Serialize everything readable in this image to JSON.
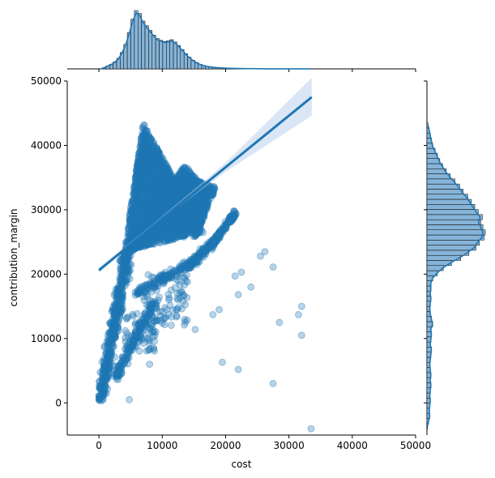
{
  "chart_data": {
    "type": "scatter",
    "kind": "jointplot-regression",
    "title": "",
    "xlabel": "cost",
    "ylabel": "contribution_margin",
    "xlim": [
      -5000,
      50000
    ],
    "ylim": [
      -5000,
      50000
    ],
    "xticks": [
      0,
      10000,
      20000,
      30000,
      40000,
      50000
    ],
    "yticks": [
      0,
      10000,
      20000,
      30000,
      40000,
      50000
    ],
    "grid": false,
    "colors": {
      "points": "#1f77b4",
      "regression_line": "#1f77b4",
      "confidence_band": "#aec7e8",
      "histogram_fill": "#86b4d8",
      "kde_line": "#1f77b4"
    },
    "regression": {
      "x_start": 0,
      "y_start": 20600,
      "x_end": 33600,
      "y_end": 47500,
      "ci": [
        {
          "x": 0,
          "lo": 20200,
          "hi": 21000
        },
        {
          "x": 8000,
          "lo": 27050,
          "hi": 27350
        },
        {
          "x": 20000,
          "lo": 35900,
          "hi": 37300
        },
        {
          "x": 33600,
          "lo": 44600,
          "hi": 50500
        }
      ]
    },
    "scatter_clusters": [
      {
        "kind": "triangle",
        "n": 2200,
        "v": [
          [
            4000,
            23500
          ],
          [
            7000,
            43500
          ],
          [
            16500,
            26500
          ]
        ]
      },
      {
        "kind": "triangle",
        "n": 1000,
        "v": [
          [
            3200,
            22000
          ],
          [
            13500,
            37000
          ],
          [
            17500,
            32500
          ]
        ]
      },
      {
        "kind": "triangle",
        "n": 500,
        "v": [
          [
            14000,
            35000
          ],
          [
            18500,
            33500
          ],
          [
            15000,
            25000
          ]
        ]
      },
      {
        "kind": "band",
        "n": 500,
        "x0": 200,
        "y0": 500,
        "x1": 4500,
        "y1": 23000,
        "w": 1400
      },
      {
        "kind": "band",
        "n": 180,
        "x0": 2500,
        "y0": 4000,
        "x1": 9000,
        "y1": 16000,
        "w": 1500
      },
      {
        "kind": "band",
        "n": 160,
        "x0": 6000,
        "y0": 17000,
        "x1": 15000,
        "y1": 22000,
        "w": 1300
      },
      {
        "kind": "band",
        "n": 150,
        "x0": 14000,
        "y0": 21000,
        "x1": 19000,
        "y1": 26000,
        "w": 900
      },
      {
        "kind": "band",
        "n": 140,
        "x0": 17500,
        "y0": 24000,
        "x1": 21500,
        "y1": 29500,
        "w": 700
      },
      {
        "kind": "box",
        "n": 80,
        "x0": 7000,
        "x1": 14000,
        "y0": 12000,
        "y1": 20000
      },
      {
        "kind": "box",
        "n": 60,
        "x0": 4000,
        "x1": 9000,
        "y0": 8000,
        "y1": 14000
      }
    ],
    "outliers": [
      [
        4800,
        500
      ],
      [
        19500,
        6300
      ],
      [
        22000,
        5200
      ],
      [
        27500,
        3000
      ],
      [
        33500,
        -4000
      ],
      [
        32000,
        10500
      ],
      [
        28500,
        12500
      ],
      [
        31500,
        13700
      ],
      [
        32000,
        15000
      ],
      [
        24000,
        18000
      ],
      [
        22000,
        16800
      ],
      [
        21500,
        19700
      ],
      [
        22500,
        20300
      ],
      [
        18000,
        13700
      ],
      [
        19000,
        14500
      ],
      [
        15200,
        11400
      ],
      [
        25500,
        22800
      ],
      [
        26200,
        23500
      ],
      [
        27500,
        21100
      ],
      [
        8000,
        6000
      ],
      [
        10500,
        13300
      ],
      [
        11000,
        13700
      ],
      [
        12500,
        16000
      ],
      [
        13000,
        17300
      ],
      [
        13500,
        18300
      ]
    ],
    "marginal_x_hist": {
      "range": [
        0,
        33600
      ],
      "bins": 60,
      "density": [
        0.0,
        0.02,
        0.05,
        0.08,
        0.12,
        0.18,
        0.28,
        0.42,
        0.62,
        0.85,
        1.0,
        0.95,
        0.82,
        0.74,
        0.66,
        0.58,
        0.52,
        0.49,
        0.47,
        0.48,
        0.5,
        0.46,
        0.4,
        0.33,
        0.26,
        0.2,
        0.15,
        0.11,
        0.08,
        0.06,
        0.045,
        0.035,
        0.028,
        0.022,
        0.018,
        0.015,
        0.012,
        0.01,
        0.008,
        0.007,
        0.006,
        0.005,
        0.004,
        0.004,
        0.003,
        0.003,
        0.002,
        0.002,
        0.002,
        0.002,
        0.001,
        0.001,
        0.001,
        0.001,
        0.001,
        0.001,
        0.001,
        0.001,
        0.001,
        0.001
      ]
    },
    "marginal_y_hist": {
      "range": [
        -4000,
        43500
      ],
      "bins": 60,
      "density": [
        0.01,
        0.03,
        0.05,
        0.04,
        0.05,
        0.06,
        0.05,
        0.06,
        0.07,
        0.06,
        0.07,
        0.06,
        0.05,
        0.06,
        0.07,
        0.08,
        0.06,
        0.07,
        0.08,
        0.07,
        0.1,
        0.08,
        0.06,
        0.05,
        0.06,
        0.07,
        0.06,
        0.07,
        0.07,
        0.1,
        0.18,
        0.28,
        0.42,
        0.58,
        0.72,
        0.84,
        0.9,
        0.98,
        1.0,
        0.96,
        0.92,
        0.95,
        0.88,
        0.82,
        0.76,
        0.7,
        0.62,
        0.56,
        0.48,
        0.4,
        0.33,
        0.27,
        0.22,
        0.18,
        0.14,
        0.1,
        0.08,
        0.06,
        0.04,
        0.02
      ]
    }
  }
}
